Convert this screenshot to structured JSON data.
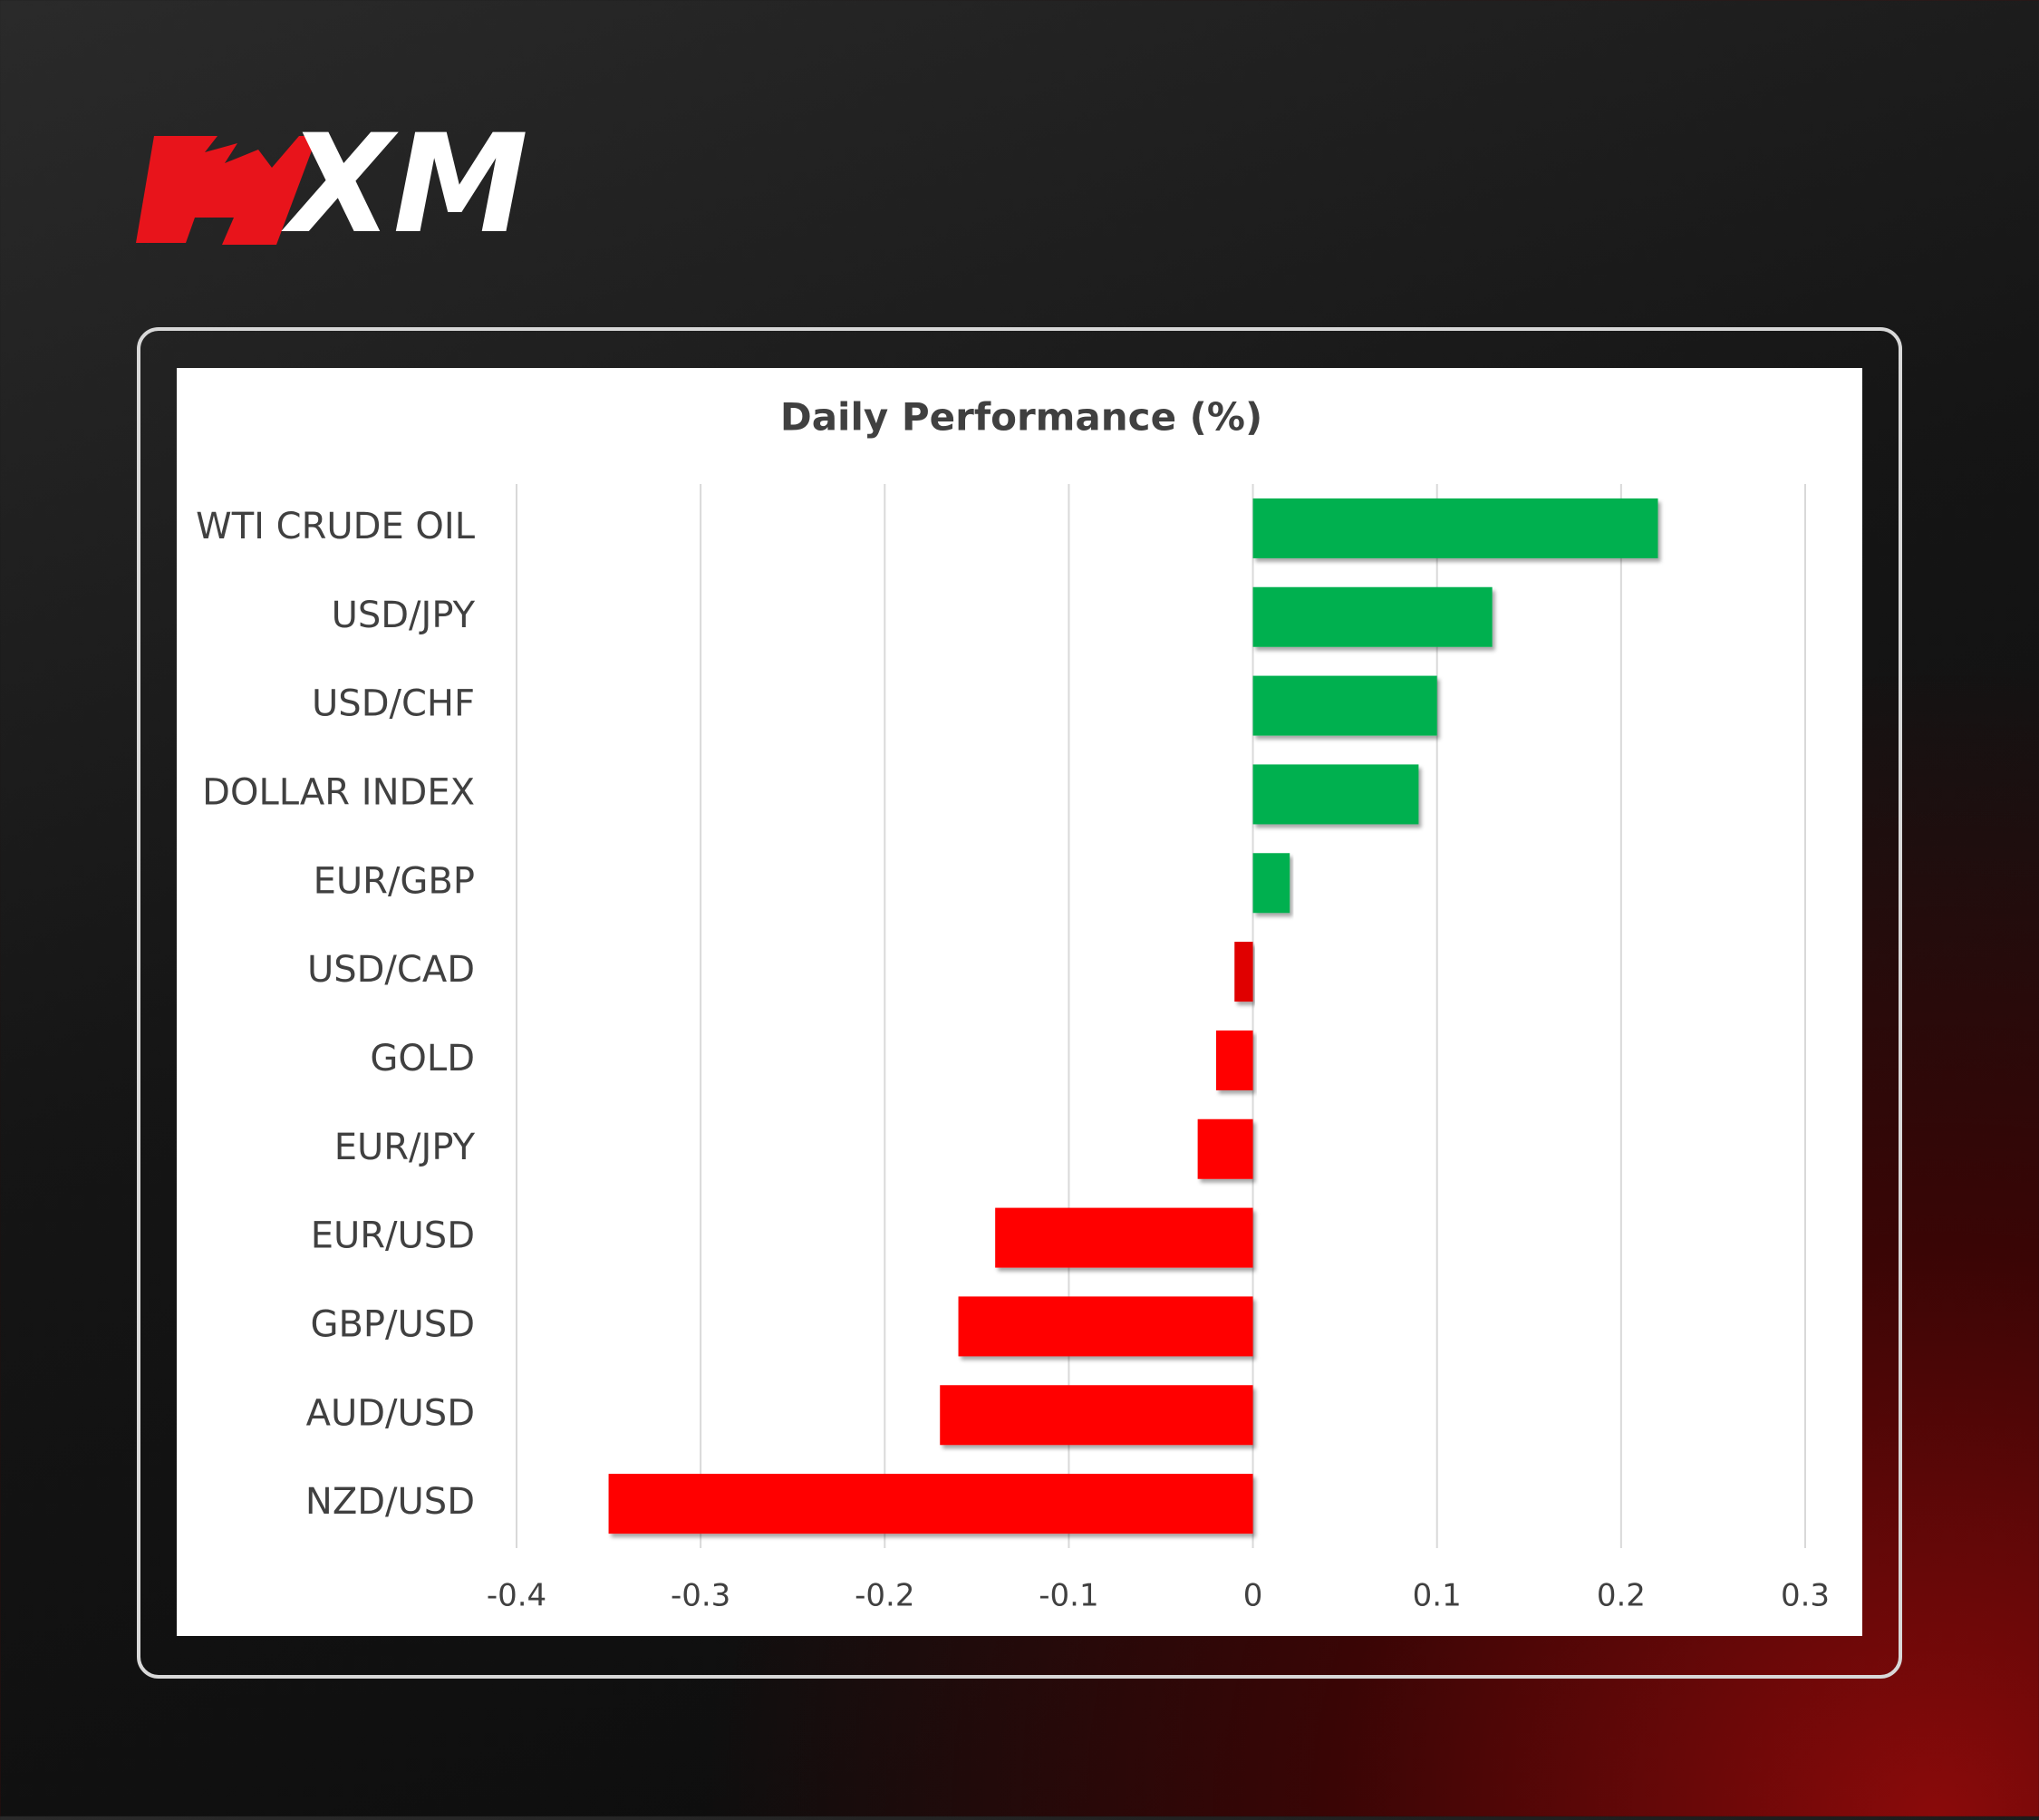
{
  "logo": "XM",
  "chart_data": {
    "type": "hbar",
    "title": "Daily Performance (%)",
    "categories": [
      "WTI CRUDE OIL",
      "USD/JPY",
      "USD/CHF",
      "DOLLAR INDEX",
      "EUR/GBP",
      "USD/CAD",
      "GOLD",
      "EUR/JPY",
      "EUR/USD",
      "GBP/USD",
      "AUD/USD",
      "NZD/USD"
    ],
    "values": [
      0.22,
      0.13,
      0.1,
      0.09,
      0.02,
      -0.01,
      -0.02,
      -0.03,
      -0.14,
      -0.16,
      -0.17,
      -0.35
    ],
    "colors": [
      "#00b050",
      "#00b050",
      "#00b050",
      "#00b050",
      "#00b050",
      "#e00000",
      "#ff0000",
      "#ff0000",
      "#ff0000",
      "#ff0000",
      "#ff0000",
      "#ff0000"
    ],
    "xlim": [
      -0.4,
      0.3
    ],
    "xticks": [
      -0.4,
      -0.3,
      -0.2,
      -0.1,
      0,
      0.1,
      0.2,
      0.3
    ],
    "grid": true
  }
}
